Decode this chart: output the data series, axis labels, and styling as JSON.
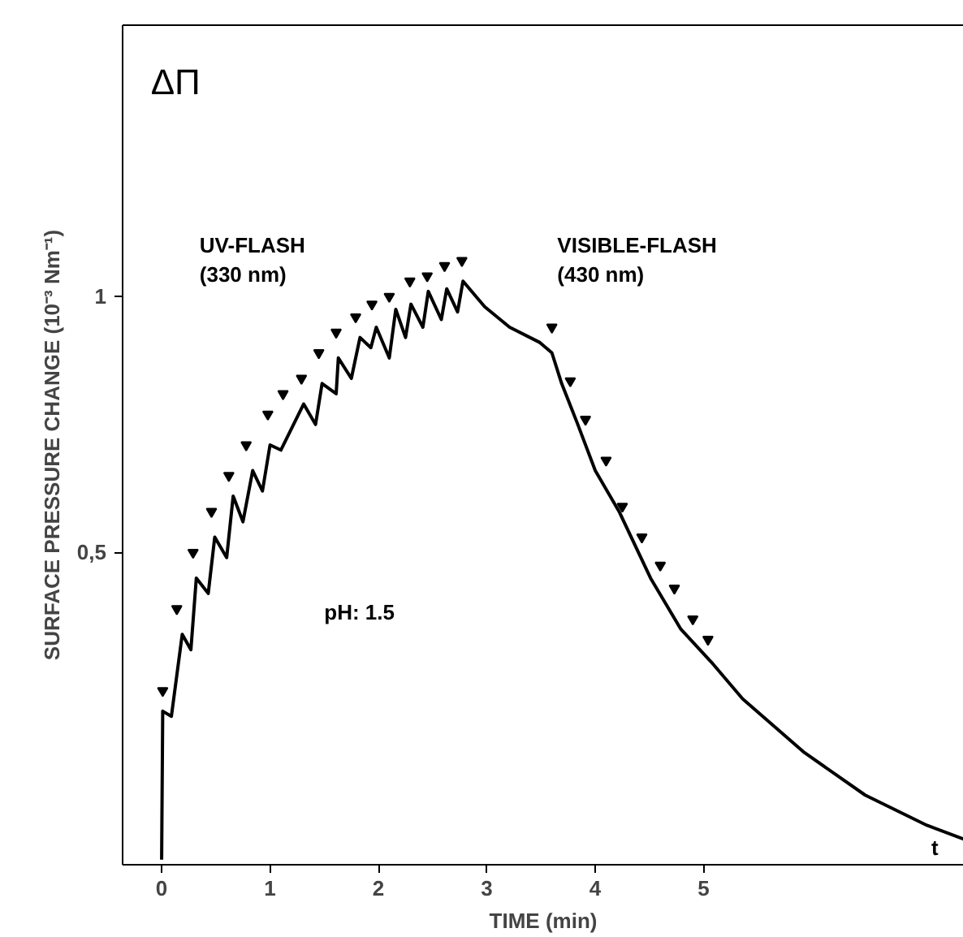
{
  "chart_data": {
    "type": "line",
    "xlabel": "TIME (min)",
    "ylabel": "SURFACE PRESSURE CHANGE (10⁻³ Nm⁻¹)",
    "annotations": [
      "ΔΠ",
      "UV-FLASH\n(330 nm)",
      "VISIBLE-FLASH\n(430 nm)",
      "pH: 1.5",
      "t"
    ],
    "xlim": [
      -0.36,
      7.4
    ],
    "ylim": [
      -0.11,
      1.53
    ],
    "xticks": [
      0,
      1,
      2,
      3,
      4,
      5
    ],
    "yticks": [
      {
        "value": 0.5,
        "label": "0,5"
      },
      1
    ],
    "grid": false,
    "line_style": "solid",
    "series": [
      {
        "color": "#000000",
        "marker": "none",
        "x": [
          0,
          0.01,
          0.09,
          0.19,
          0.27,
          0.32,
          0.43,
          0.49,
          0.6,
          0.66,
          0.75,
          0.84,
          0.93,
          1.0,
          1.1,
          1.31,
          1.42,
          1.48,
          1.61,
          1.63,
          1.75,
          1.83,
          1.93,
          1.98,
          2.1,
          2.16,
          2.25,
          2.3,
          2.41,
          2.46,
          2.58,
          2.63,
          2.73,
          2.78,
          2.98,
          3.21,
          3.49,
          3.6,
          3.69,
          3.83,
          4.0,
          4.22,
          4.51,
          4.79,
          5.07,
          5.36,
          5.93,
          6.49,
          7.06,
          7.4
        ],
        "values": [
          -0.1,
          0.19,
          0.18,
          0.34,
          0.31,
          0.45,
          0.42,
          0.53,
          0.49,
          0.61,
          0.56,
          0.66,
          0.62,
          0.71,
          0.7,
          0.79,
          0.75,
          0.83,
          0.81,
          0.88,
          0.84,
          0.92,
          0.9,
          0.94,
          0.88,
          0.975,
          0.92,
          0.985,
          0.94,
          1.01,
          0.955,
          1.015,
          0.97,
          1.03,
          0.98,
          0.94,
          0.91,
          0.89,
          0.83,
          0.755,
          0.66,
          0.58,
          0.45,
          0.35,
          0.286,
          0.214,
          0.109,
          0.026,
          -0.033,
          -0.06
        ]
      },
      {
        "type": "scatter",
        "color": "#000000",
        "marker": "triangle",
        "x": [
          0.01,
          0.14,
          0.29,
          0.46,
          0.62,
          0.78,
          0.98,
          1.12,
          1.29,
          1.45,
          1.61,
          1.79,
          1.94,
          2.1,
          2.29,
          2.45,
          2.61,
          2.77,
          3.6,
          3.77,
          3.91,
          4.1,
          4.25,
          4.43,
          4.6,
          4.73,
          4.9,
          5.04
        ],
        "values": [
          0.23,
          0.39,
          0.5,
          0.58,
          0.65,
          0.71,
          0.77,
          0.81,
          0.84,
          0.89,
          0.93,
          0.96,
          0.985,
          1.0,
          1.03,
          1.04,
          1.06,
          1.07,
          0.94,
          0.835,
          0.76,
          0.68,
          0.59,
          0.53,
          0.475,
          0.43,
          0.37,
          0.33
        ]
      }
    ]
  }
}
